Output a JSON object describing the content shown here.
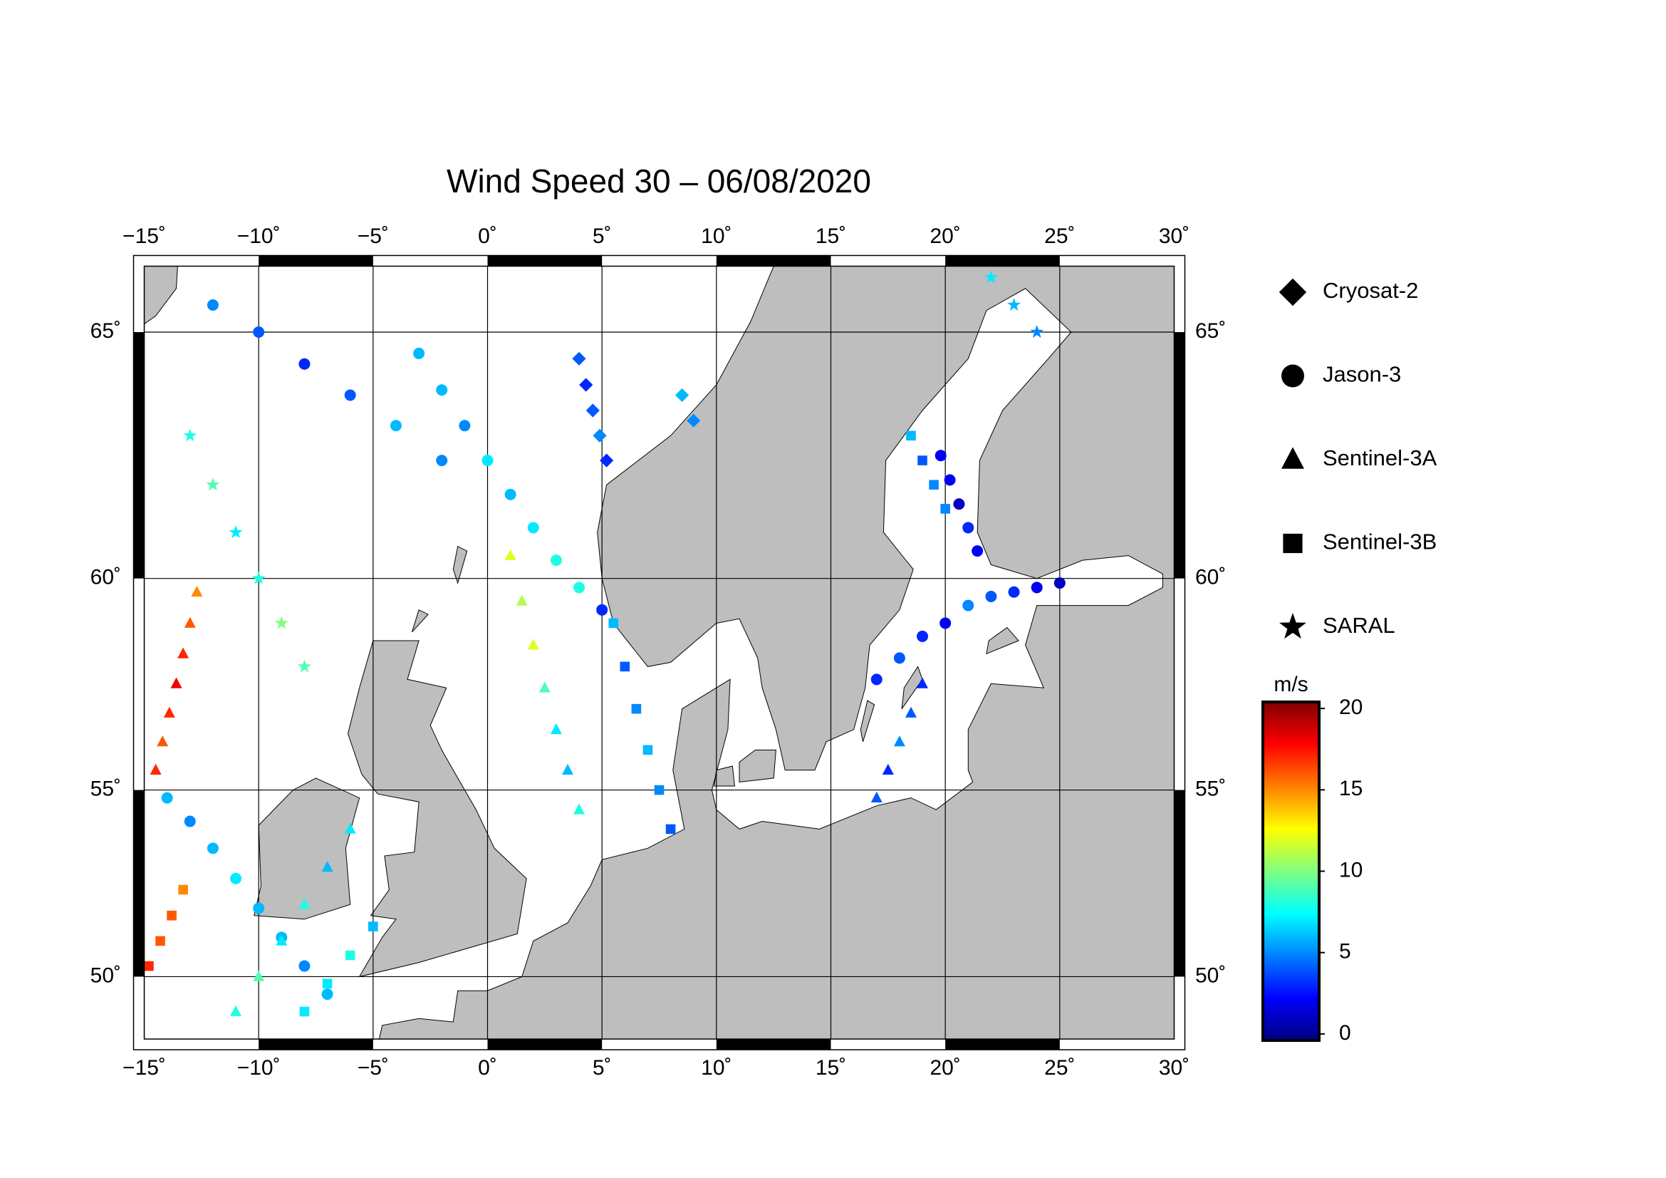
{
  "chart_data": {
    "type": "scatter-map",
    "title": "Wind Speed 30 – 06/08/2020",
    "xlim": [
      -15,
      30
    ],
    "ylim": [
      48.2,
      66.2
    ],
    "projection": "mercator",
    "grid": true,
    "xticks": [
      {
        "value": -15,
        "label": "−15˚"
      },
      {
        "value": -10,
        "label": "−10˚"
      },
      {
        "value": -5,
        "label": "−5˚"
      },
      {
        "value": 0,
        "label": "0˚"
      },
      {
        "value": 5,
        "label": "5˚"
      },
      {
        "value": 10,
        "label": "10˚"
      },
      {
        "value": 15,
        "label": "15˚"
      },
      {
        "value": 20,
        "label": "20˚"
      },
      {
        "value": 25,
        "label": "25˚"
      },
      {
        "value": 30,
        "label": "30˚"
      }
    ],
    "yticks": [
      {
        "value": 50,
        "label": "50˚"
      },
      {
        "value": 55,
        "label": "55˚"
      },
      {
        "value": 60,
        "label": "60˚"
      },
      {
        "value": 65,
        "label": "65˚"
      }
    ],
    "colormap": "jet",
    "clabel": "m/s",
    "clim": [
      -0.4,
      20.4
    ],
    "cticks": [
      0,
      5,
      10,
      15,
      20
    ],
    "series": [
      {
        "name": "Cryosat-2",
        "marker": "diamond",
        "lon": [
          4,
          4.3,
          4.6,
          4.9,
          5.2,
          8.5,
          9
        ],
        "lat": [
          64.5,
          64,
          63.5,
          63,
          62.5,
          63.8,
          63.3
        ],
        "values": [
          4,
          3,
          4,
          5,
          3,
          6,
          5
        ]
      },
      {
        "name": "Jason-3",
        "marker": "circle",
        "lon": [
          -3,
          -2,
          -1,
          0,
          1,
          2,
          3,
          4,
          5,
          17,
          18,
          19,
          20,
          21,
          22,
          23,
          24,
          25,
          -14,
          -13,
          -12,
          -11,
          -10,
          -9,
          -8,
          -7,
          19.8,
          20.2,
          20.6,
          21,
          21.4,
          -12,
          -10,
          -8,
          -6,
          -4,
          -2
        ],
        "lat": [
          64.6,
          63.9,
          63.2,
          62.5,
          61.8,
          61.1,
          60.4,
          59.8,
          59.3,
          57.7,
          58.2,
          58.7,
          59,
          59.4,
          59.6,
          59.7,
          59.8,
          59.9,
          54.8,
          54.2,
          53.5,
          52.7,
          51.9,
          51.1,
          50.3,
          49.5,
          62.6,
          62.1,
          61.6,
          61.1,
          60.6,
          65.5,
          65,
          64.4,
          63.8,
          63.2,
          62.5
        ],
        "values": [
          6,
          6,
          5,
          7,
          6,
          7,
          8,
          8,
          3,
          3,
          4,
          3,
          2,
          5,
          4,
          3,
          2,
          1,
          6,
          5,
          6,
          7,
          6,
          6,
          5,
          6,
          2,
          2,
          1,
          3,
          2,
          5,
          4,
          3,
          4,
          6,
          5
        ]
      },
      {
        "name": "Sentinel-3A",
        "marker": "triangle",
        "lon": [
          -14.5,
          -14.2,
          -13.9,
          -13.6,
          -13.3,
          -13,
          -12.7,
          1,
          1.5,
          2,
          2.5,
          3,
          3.5,
          4,
          -11,
          -10,
          -9,
          -8,
          -7,
          -6,
          17,
          17.5,
          18,
          18.5,
          19
        ],
        "lat": [
          55.5,
          56.2,
          56.9,
          57.6,
          58.3,
          59,
          59.7,
          60.5,
          59.5,
          58.5,
          57.5,
          56.5,
          55.5,
          54.5,
          49,
          50,
          51,
          52,
          53,
          54,
          54.8,
          55.5,
          56.2,
          56.9,
          57.6
        ],
        "values": [
          17,
          16,
          17,
          18,
          17,
          16,
          15,
          12,
          11,
          12,
          9,
          7,
          6,
          8,
          8,
          9,
          7,
          8,
          6,
          7,
          4,
          3,
          5,
          4,
          3
        ]
      },
      {
        "name": "Sentinel-3B",
        "marker": "square",
        "lon": [
          -8,
          -7,
          -6,
          -5,
          8,
          7.5,
          7,
          6.5,
          6,
          5.5,
          -14.8,
          -14.3,
          -13.8,
          -13.3,
          18.5,
          19,
          19.5,
          20
        ],
        "lat": [
          49,
          49.8,
          50.6,
          51.4,
          54,
          55,
          56,
          57,
          58,
          59,
          50.3,
          51,
          51.7,
          52.4,
          63,
          62.5,
          62,
          61.5
        ],
        "values": [
          7,
          7,
          8,
          6,
          4,
          5,
          6,
          5,
          4,
          6,
          17,
          16,
          16,
          15,
          6,
          4,
          5,
          5
        ]
      },
      {
        "name": "SARAL",
        "marker": "star",
        "lon": [
          -13,
          -12,
          -11,
          -10,
          -9,
          -8,
          22,
          23,
          24
        ],
        "lat": [
          63,
          62,
          61,
          60,
          59,
          58,
          66,
          65.5,
          65
        ],
        "values": [
          8,
          9,
          7,
          8,
          10,
          9,
          7,
          6,
          5
        ]
      }
    ]
  }
}
